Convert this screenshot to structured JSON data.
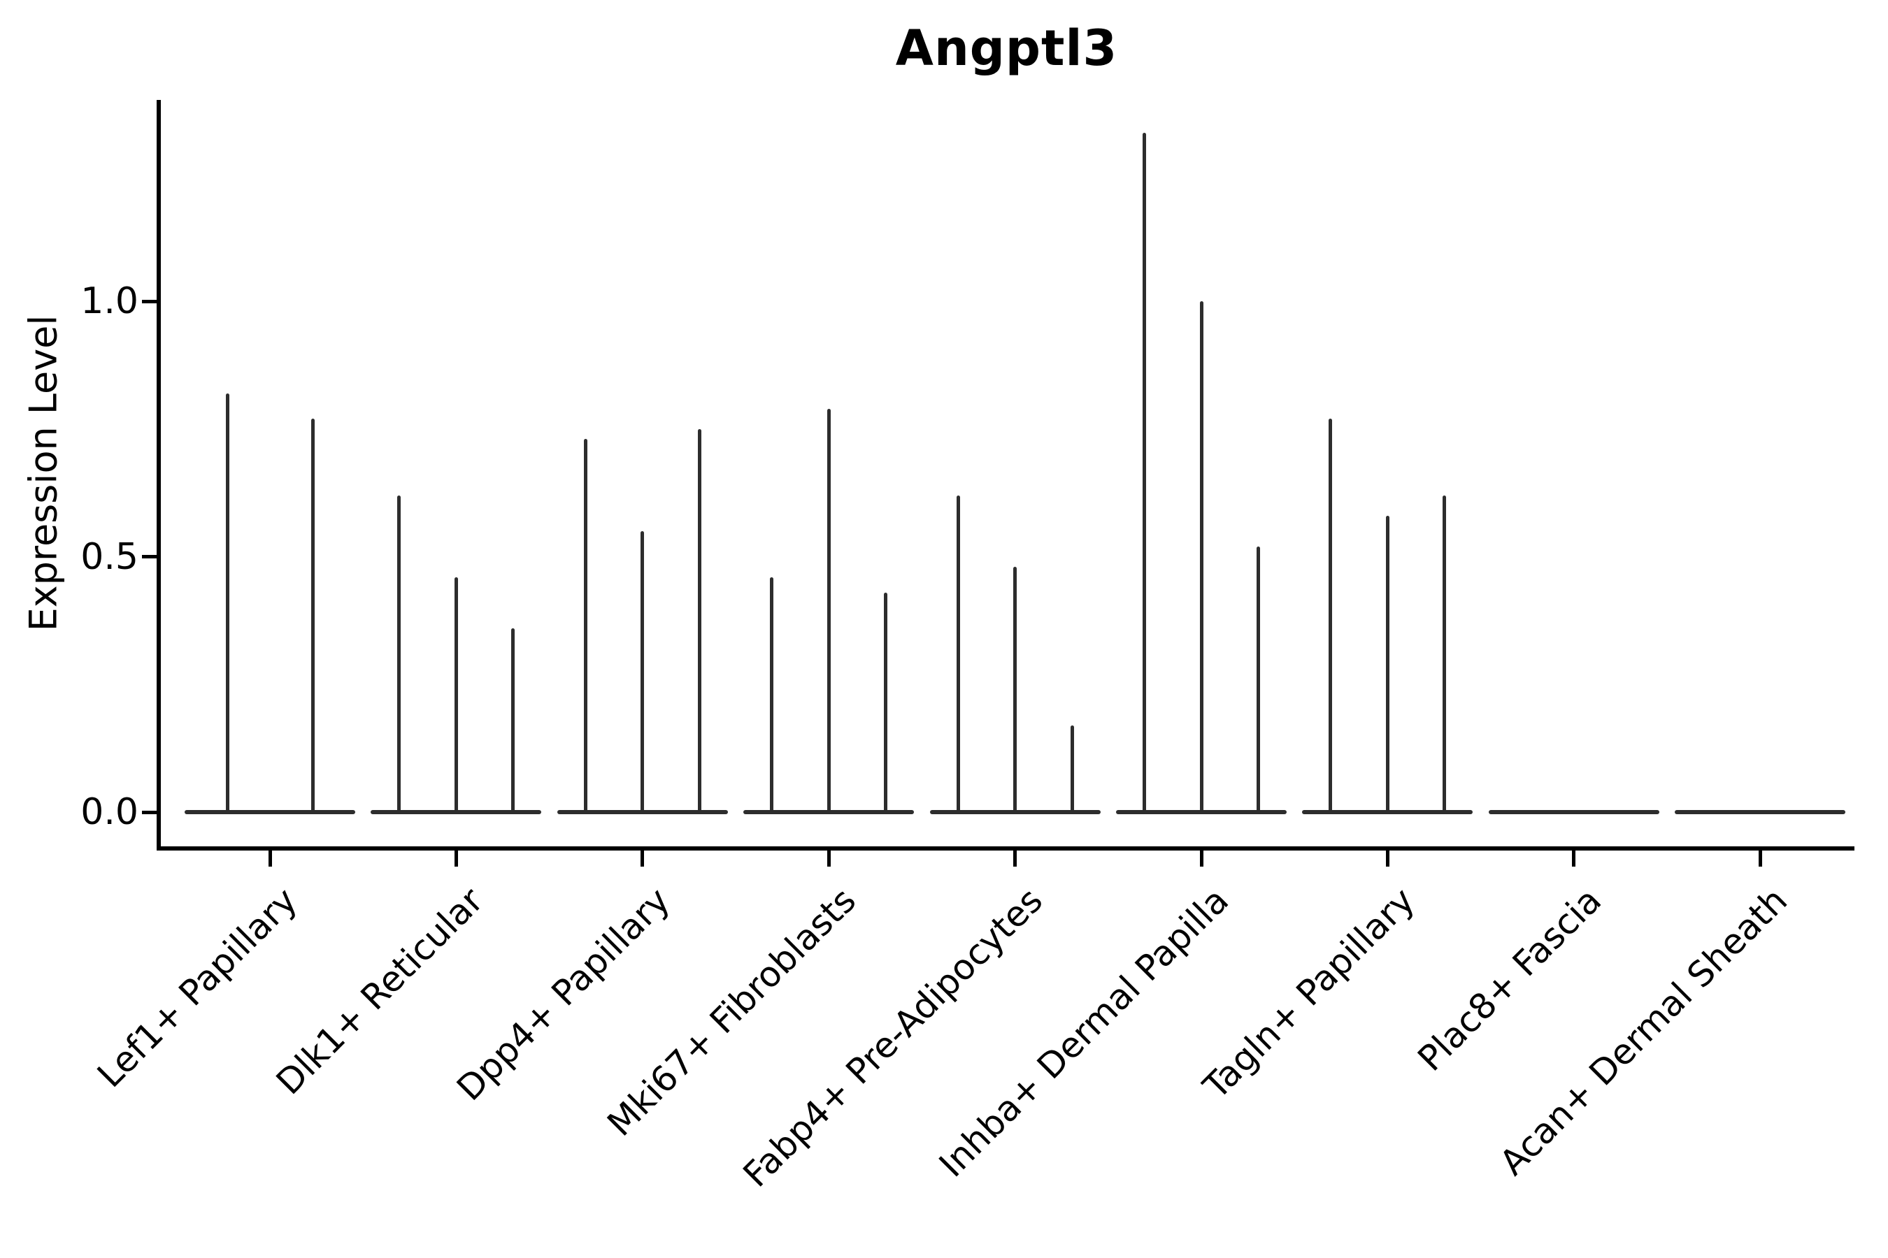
{
  "chart_data": {
    "type": "violin",
    "title": "Angptl3",
    "xlabel": "",
    "ylabel": "Expression Level",
    "ytick_labels": [
      "0.0",
      "0.5",
      "1.0"
    ],
    "ytick_values": [
      0.0,
      0.5,
      1.0
    ],
    "ylim": [
      -0.07,
      1.39
    ],
    "grid": false,
    "legend": "none",
    "baseline_value": 0.0,
    "categories": [
      "Lef1+ Papillary",
      "Dlk1+ Reticular",
      "Dpp4+ Papillary",
      "Mki67+ Fibroblasts",
      "Fabp4+ Pre-Adipocytes",
      "Inhba+ Dermal Papilla",
      "Tagln+ Papillary",
      "Plac8+ Fascia",
      "Acan+ Dermal Sheath"
    ],
    "violins": [
      {
        "category": "Lef1+ Papillary",
        "spike_max_values": [
          0.82,
          0.77
        ]
      },
      {
        "category": "Dlk1+ Reticular",
        "spike_max_values": [
          0.62,
          0.46,
          0.36
        ]
      },
      {
        "category": "Dpp4+ Papillary",
        "spike_max_values": [
          0.73,
          0.55,
          0.75
        ]
      },
      {
        "category": "Mki67+ Fibroblasts",
        "spike_max_values": [
          0.46,
          0.79,
          0.43
        ]
      },
      {
        "category": "Fabp4+ Pre-Adipocytes",
        "spike_max_values": [
          0.62,
          0.48,
          0.17
        ]
      },
      {
        "category": "Inhba+ Dermal Papilla",
        "spike_max_values": [
          1.33,
          1.0,
          0.52
        ]
      },
      {
        "category": "Tagln+ Papillary",
        "spike_max_values": [
          0.77,
          0.58,
          0.62
        ]
      },
      {
        "category": "Plac8+ Fascia",
        "spike_max_values": []
      },
      {
        "category": "Acan+ Dermal Sheath",
        "spike_max_values": []
      }
    ],
    "colors": {
      "violin": "#2d2d2d",
      "axis": "#000000",
      "text": "#000000",
      "background": "#ffffff"
    }
  }
}
